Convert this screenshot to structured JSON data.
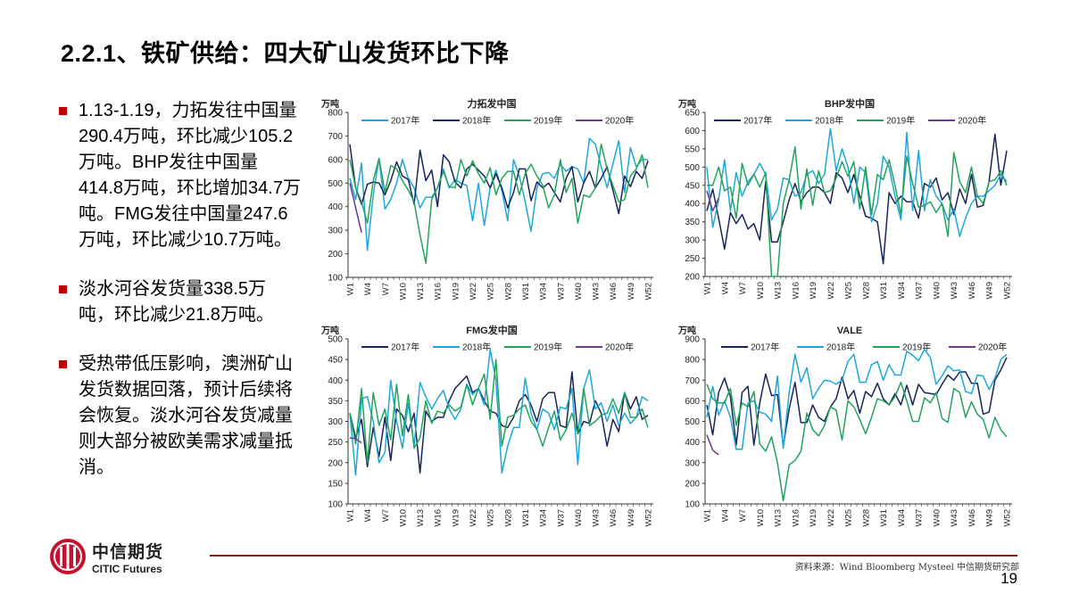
{
  "title": "2.2.1、铁矿供给：四大矿山发货环比下降",
  "bullets": [
    "1.13-1.19，力拓发往中国量290.4万吨，环比减少105.2万吨。BHP发往中国量414.8万吨，环比增加34.7万吨。FMG发往中国量247.6万吨，环比减少10.7万吨。",
    "淡水河谷发货量338.5万吨，环比减少21.8万吨。",
    "受热带低压影响，澳洲矿山发货数据回落，预计后续将会恢复。淡水河谷发货减量则大部分被欧美需求减量抵消。"
  ],
  "logo": {
    "cn": "中信期货",
    "en": "CITIC Futures"
  },
  "source": "资料来源：Wind Bloomberg Mysteel 中信期货研究部",
  "page_number": "19",
  "colors": {
    "light_blue": "#1EA7DC",
    "navy": "#17255A",
    "green": "#22A45D",
    "purple": "#6B3A8C",
    "accent_red": "#C00000"
  },
  "chart_data": [
    {
      "type": "line",
      "title": "力拓发中国",
      "ylabel": "万吨",
      "ylim": [
        100,
        800
      ],
      "yticks": [
        "100",
        "200",
        "300",
        "400",
        "500",
        "600",
        "700",
        "800"
      ],
      "x_tick_labels": [
        "W1",
        "W4",
        "W7",
        "W10",
        "W13",
        "W16",
        "W19",
        "W22",
        "W25",
        "W28",
        "W31",
        "W34",
        "W37",
        "W40",
        "W43",
        "W46",
        "W49",
        "W52"
      ],
      "legend": "top",
      "series": [
        {
          "name": "2017年",
          "color": "#1EA7DC",
          "values": [
            520,
            430,
            585,
            215,
            450,
            605,
            390,
            430,
            500,
            600,
            520,
            480,
            395,
            440,
            440,
            480,
            560,
            480,
            515,
            500,
            490,
            340,
            500,
            320,
            480,
            555,
            470,
            340,
            600,
            530,
            420,
            295,
            480,
            540,
            545,
            520,
            580,
            550,
            570,
            560,
            500,
            690,
            665,
            570,
            480,
            580,
            680,
            460,
            650,
            570,
            600,
            600
          ]
        },
        {
          "name": "2018年",
          "color": "#17255A",
          "values": [
            665,
            480,
            410,
            495,
            505,
            500,
            450,
            510,
            590,
            530,
            515,
            410,
            640,
            510,
            555,
            400,
            620,
            590,
            505,
            480,
            560,
            580,
            555,
            530,
            480,
            540,
            480,
            395,
            460,
            560,
            560,
            425,
            505,
            480,
            500,
            460,
            420,
            520,
            570,
            420,
            500,
            550,
            480,
            520,
            570,
            470,
            370,
            530,
            485,
            550,
            520,
            595
          ]
        },
        {
          "name": "2019年",
          "color": "#22A45D",
          "values": [
            600,
            480,
            420,
            330,
            510,
            605,
            460,
            575,
            560,
            510,
            470,
            420,
            280,
            160,
            430,
            480,
            550,
            485,
            480,
            600,
            530,
            595,
            540,
            500,
            565,
            450,
            520,
            550,
            550,
            450,
            540,
            580,
            530,
            490,
            395,
            450,
            600,
            460,
            520,
            330,
            450,
            440,
            480,
            665,
            560,
            490,
            420,
            430,
            530,
            560,
            620,
            480
          ]
        },
        {
          "name": "2020年",
          "color": "#6B3A8C",
          "values": [
            500,
            395.6,
            290.4
          ]
        }
      ]
    },
    {
      "type": "line",
      "title": "BHP发中国",
      "ylabel": "万吨",
      "ylim": [
        200,
        650
      ],
      "yticks": [
        "200",
        "250",
        "300",
        "350",
        "400",
        "450",
        "500",
        "550",
        "600",
        "650"
      ],
      "x_tick_labels": [
        "W1",
        "W4",
        "W7",
        "W10",
        "W13",
        "W16",
        "W19",
        "W22",
        "W25",
        "W28",
        "W31",
        "W34",
        "W37",
        "W40",
        "W43",
        "W46",
        "W49",
        "W52"
      ],
      "legend": "top",
      "series": [
        {
          "name": "2017年",
          "color": "#17255A",
          "values": [
            380,
            440,
            360,
            275,
            375,
            345,
            370,
            330,
            345,
            300,
            460,
            295,
            295,
            350,
            410,
            455,
            405,
            430,
            445,
            445,
            430,
            400,
            485,
            470,
            430,
            480,
            420,
            365,
            360,
            350,
            235,
            430,
            400,
            420,
            405,
            405,
            360,
            455,
            445,
            470,
            410,
            430,
            370,
            440,
            400,
            480,
            390,
            395,
            460,
            590,
            450,
            545
          ]
        },
        {
          "name": "2018年",
          "color": "#1EA7DC",
          "values": [
            500,
            335,
            410,
            520,
            380,
            485,
            420,
            460,
            480,
            510,
            480,
            355,
            385,
            470,
            465,
            420,
            430,
            480,
            490,
            455,
            480,
            605,
            490,
            550,
            500,
            400,
            500,
            485,
            350,
            400,
            530,
            500,
            420,
            355,
            595,
            380,
            545,
            380,
            465,
            420,
            400,
            355,
            385,
            310,
            360,
            400,
            420,
            420,
            435,
            450,
            480,
            460
          ]
        },
        {
          "name": "2019年",
          "color": "#22A45D",
          "values": [
            450,
            450,
            500,
            435,
            445,
            360,
            510,
            450,
            480,
            445,
            485,
            200,
            200,
            400,
            465,
            555,
            385,
            495,
            395,
            490,
            430,
            435,
            470,
            515,
            475,
            515,
            385,
            500,
            370,
            480,
            465,
            520,
            450,
            370,
            530,
            455,
            390,
            395,
            405,
            375,
            400,
            310,
            540,
            460,
            430,
            500,
            420,
            400,
            460,
            465,
            490,
            450
          ]
        },
        {
          "name": "2020年",
          "color": "#6B3A8C",
          "values": [
            435,
            380.1,
            414.8
          ]
        }
      ]
    },
    {
      "type": "line",
      "title": "FMG发中国",
      "ylabel": "万吨",
      "ylim": [
        100,
        500
      ],
      "yticks": [
        "100",
        "150",
        "200",
        "250",
        "300",
        "350",
        "400",
        "450",
        "500"
      ],
      "x_tick_labels": [
        "W1",
        "W4",
        "W7",
        "W10",
        "W13",
        "W16",
        "W19",
        "W22",
        "W25",
        "W28",
        "W31",
        "W34",
        "W37",
        "W40",
        "W43",
        "W46",
        "W49",
        "W52"
      ],
      "legend": "top",
      "series": [
        {
          "name": "2017年",
          "color": "#17255A",
          "values": [
            320,
            260,
            305,
            190,
            285,
            215,
            310,
            205,
            330,
            315,
            275,
            320,
            175,
            325,
            300,
            310,
            310,
            350,
            380,
            395,
            410,
            370,
            380,
            350,
            325,
            320,
            290,
            285,
            310,
            350,
            365,
            340,
            300,
            355,
            370,
            370,
            290,
            285,
            420,
            270,
            300,
            295,
            350,
            320,
            240,
            305,
            275,
            370,
            330,
            360,
            305,
            315
          ]
        },
        {
          "name": "2018年",
          "color": "#1EA7DC",
          "values": [
            320,
            170,
            355,
            360,
            300,
            200,
            225,
            400,
            300,
            235,
            345,
            240,
            395,
            360,
            330,
            355,
            375,
            330,
            305,
            330,
            390,
            365,
            380,
            340,
            475,
            400,
            175,
            240,
            285,
            285,
            405,
            320,
            280,
            330,
            320,
            280,
            335,
            330,
            380,
            195,
            380,
            425,
            330,
            345,
            300,
            340,
            290,
            320,
            295,
            310,
            360,
            350
          ]
        },
        {
          "name": "2019年",
          "color": "#22A45D",
          "values": [
            320,
            245,
            380,
            200,
            370,
            290,
            330,
            255,
            390,
            265,
            365,
            235,
            260,
            350,
            295,
            325,
            320,
            340,
            325,
            335,
            390,
            340,
            380,
            415,
            305,
            450,
            240,
            310,
            315,
            330,
            340,
            300,
            280,
            240,
            285,
            325,
            255,
            280,
            320,
            270,
            380,
            290,
            300,
            315,
            320,
            355,
            320,
            370,
            310,
            310,
            330,
            285
          ]
        },
        {
          "name": "2020年",
          "color": "#6B3A8C",
          "values": [
            260,
            258.3,
            247.6
          ]
        }
      ]
    },
    {
      "type": "line",
      "title": "VALE",
      "ylabel": "万吨",
      "ylim": [
        100,
        900
      ],
      "yticks": [
        "100",
        "200",
        "300",
        "400",
        "500",
        "600",
        "700",
        "800",
        "900"
      ],
      "x_tick_labels": [
        "W1",
        "W4",
        "W7",
        "W10",
        "W13",
        "W16",
        "W19",
        "W22",
        "W25",
        "W28",
        "W31",
        "W34",
        "W37",
        "W40",
        "W43",
        "W46",
        "W49",
        "W52"
      ],
      "legend": "top",
      "series": [
        {
          "name": "2017年",
          "color": "#17255A",
          "values": [
            580,
            435,
            640,
            710,
            620,
            385,
            640,
            670,
            385,
            590,
            730,
            625,
            630,
            380,
            560,
            690,
            495,
            495,
            580,
            520,
            500,
            570,
            610,
            715,
            610,
            650,
            540,
            645,
            620,
            685,
            610,
            580,
            635,
            580,
            675,
            580,
            680,
            640,
            635,
            630,
            680,
            725,
            700,
            740,
            740,
            685,
            685,
            535,
            545,
            700,
            750,
            810
          ]
        },
        {
          "name": "2018年",
          "color": "#1EA7DC",
          "values": [
            520,
            670,
            530,
            600,
            520,
            365,
            365,
            590,
            600,
            545,
            535,
            500,
            720,
            370,
            640,
            825,
            690,
            760,
            610,
            660,
            700,
            695,
            680,
            700,
            790,
            825,
            690,
            690,
            775,
            790,
            700,
            775,
            725,
            725,
            840,
            820,
            795,
            850,
            810,
            680,
            720,
            770,
            745,
            750,
            645,
            635,
            725,
            720,
            655,
            710,
            800,
            825
          ]
        },
        {
          "name": "2019年",
          "color": "#22A45D",
          "values": [
            680,
            610,
            590,
            590,
            660,
            480,
            590,
            570,
            645,
            390,
            355,
            425,
            300,
            115,
            290,
            310,
            355,
            540,
            460,
            430,
            480,
            570,
            555,
            410,
            600,
            570,
            510,
            440,
            520,
            610,
            600,
            580,
            620,
            690,
            600,
            500,
            500,
            615,
            590,
            640,
            515,
            495,
            660,
            640,
            520,
            595,
            535,
            510,
            420,
            520,
            460,
            425
          ]
        },
        {
          "name": "2020年",
          "color": "#6B3A8C",
          "values": [
            435,
            360.3,
            338.5
          ]
        }
      ]
    }
  ]
}
